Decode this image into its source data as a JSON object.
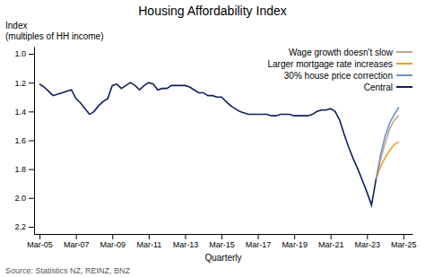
{
  "chart_data": {
    "type": "line",
    "title": "Housing Affordability Index",
    "ylabel": [
      "Index",
      "(multiples of HH income)"
    ],
    "xlabel": "Quarterly",
    "source": "Source: Statistics NZ, REINZ, BNZ",
    "xlim": [
      2004.7,
      2025.5
    ],
    "xticks": [
      {
        "value": 2005,
        "label": "Mar-05"
      },
      {
        "value": 2007,
        "label": "Mar-07"
      },
      {
        "value": 2009,
        "label": "Mar-09"
      },
      {
        "value": 2011,
        "label": "Mar-11"
      },
      {
        "value": 2013,
        "label": "Mar-13"
      },
      {
        "value": 2015,
        "label": "Mar-15"
      },
      {
        "value": 2017,
        "label": "Mar-17"
      },
      {
        "value": 2019,
        "label": "Mar-19"
      },
      {
        "value": 2021,
        "label": "Mar-21"
      },
      {
        "value": 2023,
        "label": "Mar-23"
      },
      {
        "value": 2025,
        "label": "Mar-25"
      }
    ],
    "ylim": [
      2.25,
      0.95
    ],
    "yticks": [
      {
        "value": 1.0,
        "label": "1.0"
      },
      1.2,
      1.4,
      1.6,
      1.8,
      {
        "value": 2.0,
        "label": "2.0"
      },
      2.2
    ],
    "grid": false,
    "legend": "top-right",
    "series": [
      {
        "name": "Wage growth doesn't slow",
        "color": "#b8a898",
        "x": [
          2023.5,
          2023.75,
          2024.0,
          2024.25,
          2024.5,
          2024.75
        ],
        "values": [
          1.87,
          1.73,
          1.62,
          1.52,
          1.46,
          1.43
        ]
      },
      {
        "name": "Larger mortgage rate increases",
        "color": "#e8a020",
        "x": [
          2023.5,
          2023.75,
          2024.0,
          2024.25,
          2024.5,
          2024.75
        ],
        "values": [
          1.87,
          1.78,
          1.72,
          1.67,
          1.63,
          1.61
        ]
      },
      {
        "name": "30% house price correction",
        "color": "#7090c8",
        "x": [
          2023.5,
          2023.75,
          2024.0,
          2024.25,
          2024.5,
          2024.75
        ],
        "values": [
          1.87,
          1.7,
          1.57,
          1.48,
          1.42,
          1.37
        ]
      },
      {
        "name": "Central",
        "color": "#0d1f5c",
        "x": [
          2005.0,
          2005.25,
          2005.5,
          2005.75,
          2006.0,
          2006.25,
          2006.5,
          2006.75,
          2007.0,
          2007.25,
          2007.5,
          2007.75,
          2008.0,
          2008.25,
          2008.5,
          2008.75,
          2009.0,
          2009.25,
          2009.5,
          2009.75,
          2010.0,
          2010.25,
          2010.5,
          2010.75,
          2011.0,
          2011.25,
          2011.5,
          2011.75,
          2012.0,
          2012.25,
          2012.5,
          2012.75,
          2013.0,
          2013.25,
          2013.5,
          2013.75,
          2014.0,
          2014.25,
          2014.5,
          2014.75,
          2015.0,
          2015.25,
          2015.5,
          2015.75,
          2016.0,
          2016.25,
          2016.5,
          2016.75,
          2017.0,
          2017.25,
          2017.5,
          2017.75,
          2018.0,
          2018.25,
          2018.5,
          2018.75,
          2019.0,
          2019.25,
          2019.5,
          2019.75,
          2020.0,
          2020.25,
          2020.5,
          2020.75,
          2021.0,
          2021.25,
          2021.5,
          2021.75,
          2022.0,
          2022.25,
          2022.5,
          2022.75,
          2023.0,
          2023.25,
          2023.5
        ],
        "values": [
          1.21,
          1.23,
          1.26,
          1.29,
          1.28,
          1.27,
          1.26,
          1.25,
          1.31,
          1.34,
          1.38,
          1.42,
          1.4,
          1.36,
          1.33,
          1.31,
          1.22,
          1.21,
          1.24,
          1.22,
          1.2,
          1.22,
          1.25,
          1.22,
          1.2,
          1.21,
          1.25,
          1.24,
          1.24,
          1.22,
          1.22,
          1.22,
          1.22,
          1.23,
          1.25,
          1.27,
          1.27,
          1.29,
          1.29,
          1.3,
          1.3,
          1.33,
          1.36,
          1.38,
          1.4,
          1.41,
          1.42,
          1.42,
          1.42,
          1.42,
          1.42,
          1.43,
          1.43,
          1.42,
          1.42,
          1.42,
          1.43,
          1.43,
          1.43,
          1.43,
          1.42,
          1.4,
          1.39,
          1.39,
          1.38,
          1.4,
          1.46,
          1.56,
          1.65,
          1.73,
          1.8,
          1.88,
          1.96,
          2.05,
          1.87
        ]
      }
    ]
  }
}
